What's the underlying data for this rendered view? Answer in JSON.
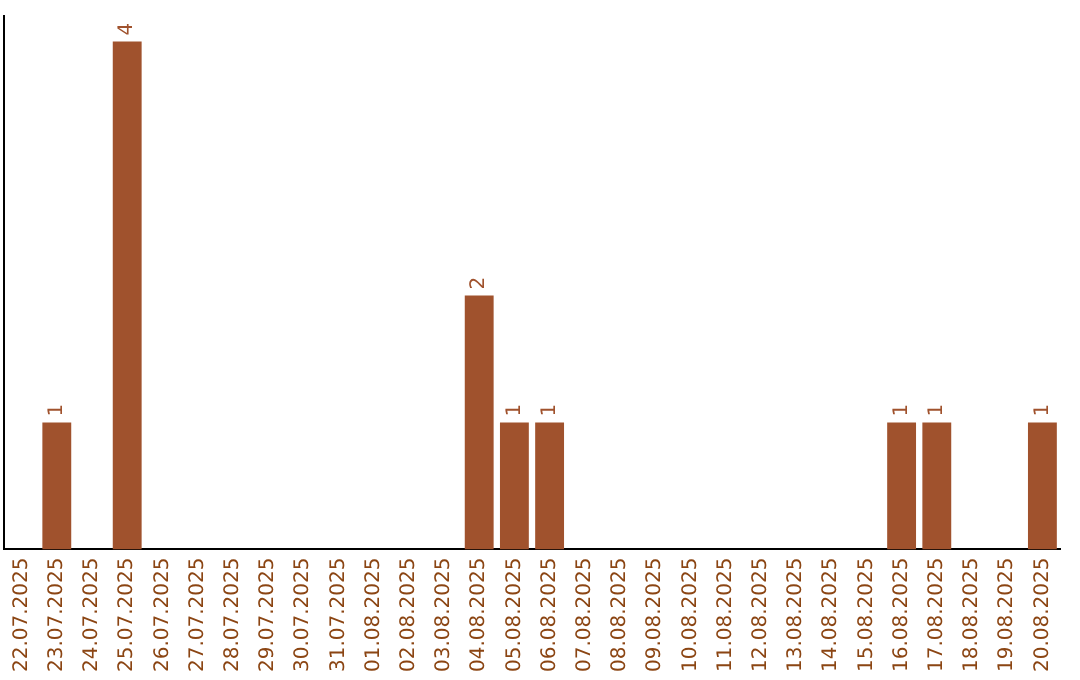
{
  "chart_data": {
    "type": "bar",
    "categories": [
      "22.07.2025",
      "23.07.2025",
      "24.07.2025",
      "25.07.2025",
      "26.07.2025",
      "27.07.2025",
      "28.07.2025",
      "29.07.2025",
      "30.07.2025",
      "31.07.2025",
      "01.08.2025",
      "02.08.2025",
      "03.08.2025",
      "04.08.2025",
      "05.08.2025",
      "06.08.2025",
      "07.08.2025",
      "08.08.2025",
      "09.08.2025",
      "10.08.2025",
      "11.08.2025",
      "12.08.2025",
      "13.08.2025",
      "14.08.2025",
      "15.08.2025",
      "16.08.2025",
      "17.08.2025",
      "18.08.2025",
      "19.08.2025",
      "20.08.2025"
    ],
    "values": [
      0,
      1,
      0,
      4,
      0,
      0,
      0,
      0,
      0,
      0,
      0,
      0,
      0,
      2,
      1,
      1,
      0,
      0,
      0,
      0,
      0,
      0,
      0,
      0,
      0,
      1,
      1,
      0,
      0,
      1
    ],
    "value_labels": [
      null,
      "1",
      null,
      "4",
      null,
      null,
      null,
      null,
      null,
      null,
      null,
      null,
      null,
      "2",
      "1",
      "1",
      null,
      null,
      null,
      null,
      null,
      null,
      null,
      null,
      null,
      "1",
      "1",
      null,
      null,
      "1"
    ],
    "color": "#a0522d",
    "grid": false,
    "legend": false,
    "tick_labels": "x"
  }
}
